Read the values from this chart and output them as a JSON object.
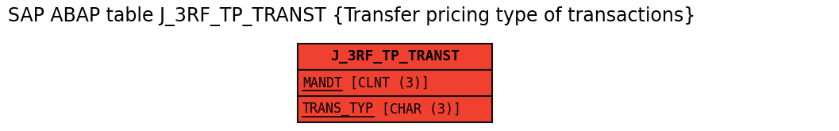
{
  "title": "SAP ABAP table J_3RF_TP_TRANST {Transfer pricing type of transactions}",
  "title_fontsize": 17,
  "box_header": "J_3RF_TP_TRANST",
  "box_rows": [
    "MANDT [CLNT (3)]",
    "TRANS_TYP [CHAR (3)]"
  ],
  "box_underline_cols": [
    "MANDT",
    "TRANS_TYP"
  ],
  "box_color": "#F04030",
  "box_border_color": "#111111",
  "box_text_color": "#000000",
  "header_fontsize": 13,
  "row_fontsize": 12,
  "background_color": "#ffffff",
  "fig_width": 10.57,
  "fig_height": 1.65,
  "dpi": 100
}
